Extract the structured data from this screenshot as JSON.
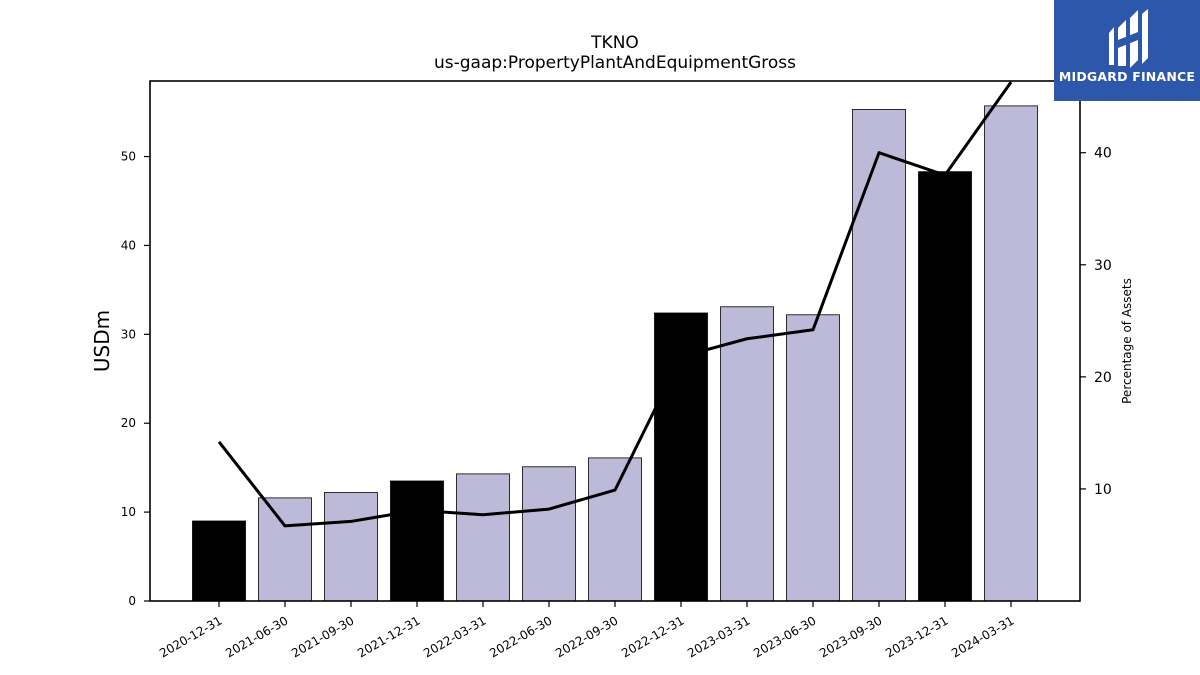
{
  "logo": {
    "text": "MIDGARD FINANCE"
  },
  "colors": {
    "annual_bar": "#000000",
    "quarterly_bar": "#bdbad9",
    "line": "#000000",
    "logo_bg": "#2c57aa"
  },
  "chart_data": {
    "type": "bar",
    "title": "TKNO",
    "subtitle": "us-gaap:PropertyPlantAndEquipmentGross",
    "ylabel": "USDm",
    "y2label": "Percentage of Assets",
    "ylim": [
      0,
      58.5
    ],
    "y2lim": [
      0,
      46.4
    ],
    "yticks": [
      0,
      10,
      20,
      30,
      40,
      50
    ],
    "y2ticks": [
      10,
      20,
      30,
      40
    ],
    "categories": [
      "2020-12-31",
      "2021-06-30",
      "2021-09-30",
      "2021-12-31",
      "2022-03-31",
      "2022-06-30",
      "2022-09-30",
      "2022-12-31",
      "2023-03-31",
      "2023-06-30",
      "2023-09-30",
      "2023-12-31",
      "2024-03-31"
    ],
    "series": [
      {
        "type": "bar",
        "values": [
          9.0,
          11.6,
          12.2,
          13.5,
          14.3,
          15.1,
          16.1,
          32.4,
          33.1,
          32.2,
          55.3,
          48.3,
          55.7
        ],
        "annual": [
          true,
          false,
          false,
          true,
          false,
          false,
          false,
          true,
          false,
          false,
          false,
          true,
          false
        ]
      },
      {
        "type": "line",
        "axis": "right",
        "values": [
          14.2,
          6.7,
          7.1,
          8.1,
          7.7,
          8.2,
          9.9,
          21.8,
          23.4,
          24.2,
          40.0,
          38.0,
          46.3
        ]
      }
    ],
    "grid": false,
    "legend": "none"
  }
}
